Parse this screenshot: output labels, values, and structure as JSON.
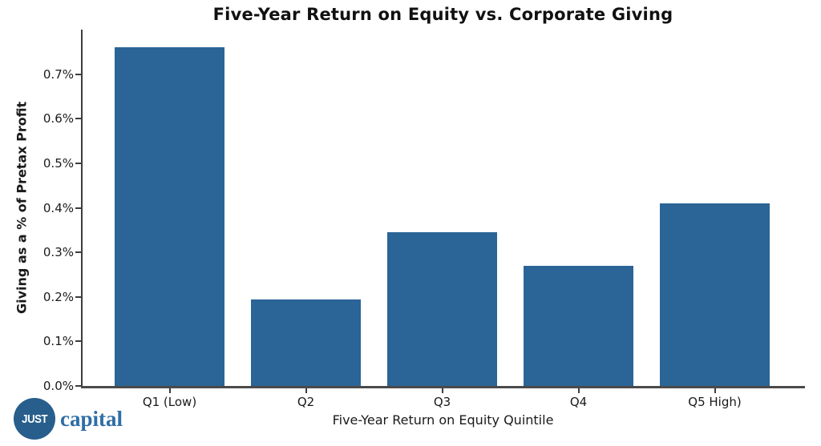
{
  "chart_data": {
    "type": "bar",
    "title": "Five-Year Return on Equity vs. Corporate Giving",
    "xlabel": "Five-Year Return on Equity Quintile",
    "ylabel": "Giving as a % of Pretax Profit",
    "categories": [
      "Q1 (Low)",
      "Q2",
      "Q3",
      "Q4",
      "Q5 High)"
    ],
    "values": [
      0.76,
      0.195,
      0.345,
      0.27,
      0.41
    ],
    "value_unit": "%",
    "ylim": [
      0,
      0.8
    ],
    "yticks": [
      0.0,
      0.1,
      0.2,
      0.3,
      0.4,
      0.5,
      0.6,
      0.7
    ],
    "ytick_labels": [
      "0.0%",
      "0.1%",
      "0.2%",
      "0.3%",
      "0.4%",
      "0.5%",
      "0.6%",
      "0.7%"
    ],
    "grid": false,
    "legend": null,
    "bar_color": "#2B6496",
    "axis_color": "#3d3d3d",
    "text_color": "#1a1a1a"
  },
  "branding": {
    "logo_circle_text": "JUST",
    "logo_wordmark": "capital",
    "logo_circle_color": "#275E8C",
    "logo_wordmark_color": "#2F6EA5"
  }
}
